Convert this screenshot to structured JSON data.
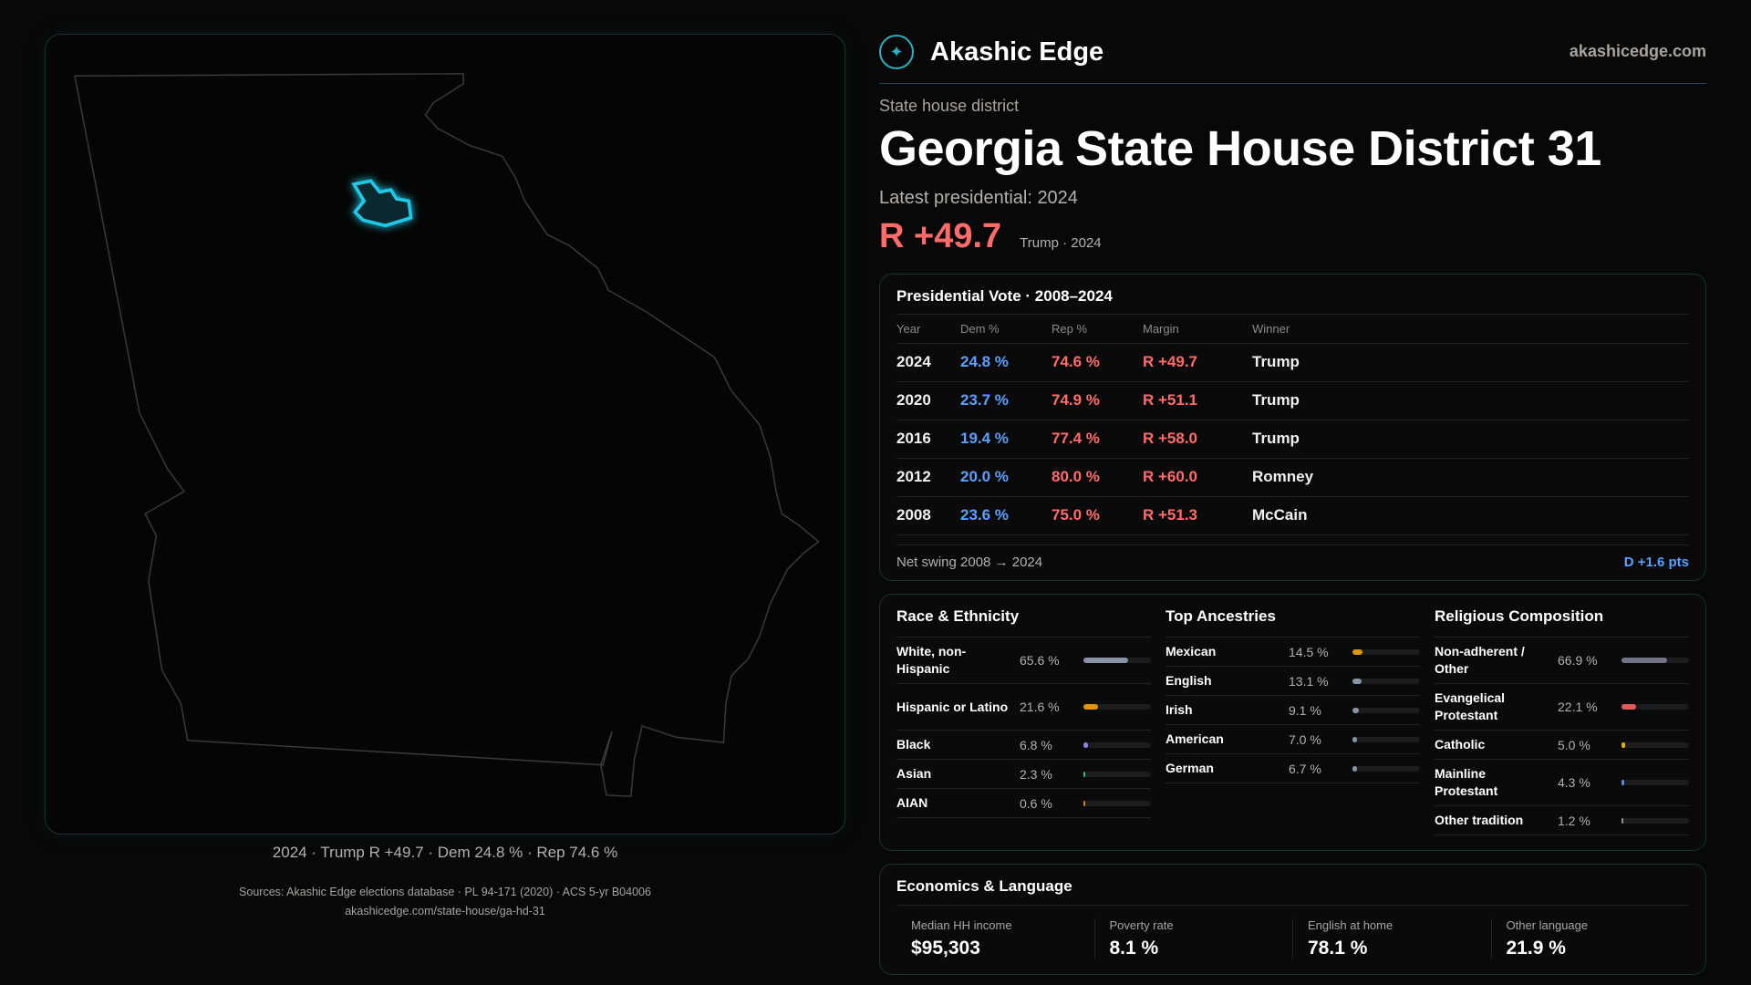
{
  "brand": {
    "name": "Akashic Edge",
    "site": "akashicedge.com"
  },
  "header": {
    "eyebrow": "State house district",
    "title": "Georgia State House District 31",
    "latest": "Latest presidential: 2024",
    "margin": "R +49.7",
    "margin_sub": "Trump · 2024"
  },
  "map": {
    "caption": "2024 · Trump R +49.7 · Dem 24.8 % · Rep 74.6 %",
    "highlight_color": "#1ec8e6"
  },
  "presidential": {
    "title": "Presidential Vote · 2008–2024",
    "headers": [
      "Year",
      "Dem %",
      "Rep %",
      "Margin",
      "Winner"
    ],
    "rows": [
      [
        "2024",
        "24.8 %",
        "74.6 %",
        "R +49.7",
        "Trump"
      ],
      [
        "2020",
        "23.7 %",
        "74.9 %",
        "R +51.1",
        "Trump"
      ],
      [
        "2016",
        "19.4 %",
        "77.4 %",
        "R +58.0",
        "Trump"
      ],
      [
        "2012",
        "20.0 %",
        "80.0 %",
        "R +60.0",
        "Romney"
      ],
      [
        "2008",
        "23.6 %",
        "75.0 %",
        "R +51.3",
        "McCain"
      ]
    ],
    "swing_label": "Net swing 2008 → 2024",
    "swing_value": "D +1.6 pts"
  },
  "race": {
    "title": "Race & Ethnicity",
    "items": [
      {
        "label": "White, non-Hispanic",
        "value": "65.6 %",
        "pct": 65.6,
        "color": "#8a94a6"
      },
      {
        "label": "Hispanic or Latino",
        "value": "21.6 %",
        "pct": 21.6,
        "color": "#e0940c"
      },
      {
        "label": "Black",
        "value": "6.8 %",
        "pct": 6.8,
        "color": "#9a7be0"
      },
      {
        "label": "Asian",
        "value": "2.3 %",
        "pct": 2.3,
        "color": "#2ab89a"
      },
      {
        "label": "AIAN",
        "value": "0.6 %",
        "pct": 0.6,
        "color": "#d9791a"
      }
    ]
  },
  "ancestry": {
    "title": "Top Ancestries",
    "items": [
      {
        "label": "Mexican",
        "value": "14.5 %",
        "pct": 14.5,
        "color": "#e0940c"
      },
      {
        "label": "English",
        "value": "13.1 %",
        "pct": 13.1,
        "color": "#8a94a6"
      },
      {
        "label": "Irish",
        "value": "9.1 %",
        "pct": 9.1,
        "color": "#8a94a6"
      },
      {
        "label": "American",
        "value": "7.0 %",
        "pct": 7.0,
        "color": "#8a94a6"
      },
      {
        "label": "German",
        "value": "6.7 %",
        "pct": 6.7,
        "color": "#8a94a6"
      }
    ]
  },
  "religion": {
    "title": "Religious Composition",
    "items": [
      {
        "label": "Non-adherent / Other",
        "value": "66.9 %",
        "pct": 66.9,
        "color": "#6f7584"
      },
      {
        "label": "Evangelical Protestant",
        "value": "22.1 %",
        "pct": 22.1,
        "color": "#e05a5a"
      },
      {
        "label": "Catholic",
        "value": "5.0 %",
        "pct": 5.0,
        "color": "#e0b00c"
      },
      {
        "label": "Mainline Protestant",
        "value": "4.3 %",
        "pct": 4.3,
        "color": "#4a8ff0"
      },
      {
        "label": "Other tradition",
        "value": "1.2 %",
        "pct": 1.2,
        "color": "#8a94a6"
      }
    ]
  },
  "economics": {
    "title": "Economics & Language",
    "stats": [
      {
        "label": "Median HH income",
        "value": "$95,303"
      },
      {
        "label": "Poverty rate",
        "value": "8.1 %"
      },
      {
        "label": "English at home",
        "value": "78.1 %"
      },
      {
        "label": "Other language",
        "value": "21.9 %"
      }
    ]
  },
  "sources": {
    "line1": "Sources: Akashic Edge elections database · PL 94-171 (2020) · ACS 5-yr B04006",
    "line2": "akashicedge.com/state-house/ga-hd-31"
  }
}
